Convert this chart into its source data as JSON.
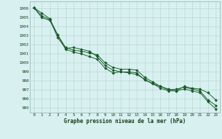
{
  "xlabel": "Graphe pression niveau de la mer (hPa)",
  "bg_color": "#d8f0f0",
  "grid_color": "#b8d8d4",
  "line_color": "#1a5c2a",
  "ylim": [
    994.5,
    1006.8
  ],
  "xlim": [
    -0.5,
    23.5
  ],
  "yticks": [
    995,
    996,
    997,
    998,
    999,
    1000,
    1001,
    1002,
    1003,
    1004,
    1005,
    1006
  ],
  "xticks": [
    0,
    1,
    2,
    3,
    4,
    5,
    6,
    7,
    8,
    9,
    10,
    11,
    12,
    13,
    14,
    15,
    16,
    17,
    18,
    19,
    20,
    21,
    22,
    23
  ],
  "line1": [
    1006.1,
    1005.5,
    1004.9,
    1003.1,
    1001.7,
    1001.4,
    1001.3,
    1001.1,
    1000.9,
    1000.0,
    999.5,
    999.3,
    999.3,
    999.2,
    998.4,
    997.9,
    997.4,
    997.0,
    997.1,
    997.3,
    997.1,
    996.9,
    995.9,
    995.3
  ],
  "line2": [
    1006.1,
    1005.2,
    1004.8,
    1002.8,
    1001.6,
    1001.7,
    1001.5,
    1001.3,
    1000.7,
    999.7,
    999.2,
    999.0,
    999.0,
    998.9,
    998.1,
    997.7,
    997.4,
    997.1,
    996.9,
    997.4,
    997.2,
    997.1,
    996.7,
    995.9
  ],
  "line3": [
    1006.1,
    1005.0,
    1004.7,
    1003.1,
    1001.5,
    1001.2,
    1001.0,
    1000.7,
    1000.4,
    999.4,
    998.9,
    999.0,
    998.9,
    998.7,
    998.2,
    997.7,
    997.2,
    996.9,
    996.9,
    997.1,
    996.9,
    996.7,
    995.7,
    994.9
  ]
}
